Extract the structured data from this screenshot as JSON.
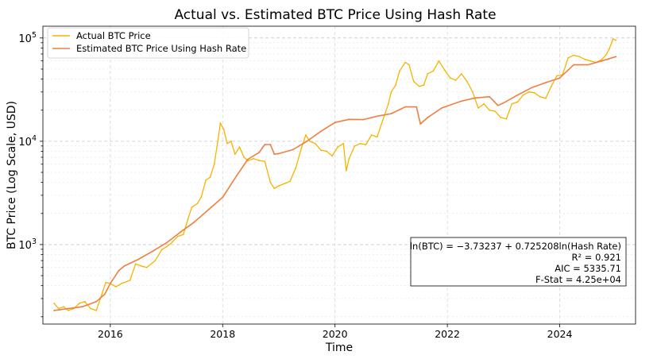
{
  "chart_data": {
    "type": "line",
    "title": "Actual vs. Estimated BTC Price Using Hash Rate",
    "xlabel": "Time",
    "ylabel": "BTC Price (Log Scale, USD)",
    "y_scale": "log",
    "xlim": [
      2014.8,
      2025.35
    ],
    "ylim": [
      170,
      130000
    ],
    "x_ticks": [
      2016,
      2018,
      2020,
      2022,
      2024
    ],
    "x_tick_labels": [
      "2016",
      "2018",
      "2020",
      "2022",
      "2024"
    ],
    "y_ticks": [
      1000,
      10000,
      100000
    ],
    "y_tick_labels": [
      "10^3",
      "10^4",
      "10^5"
    ],
    "grid": true,
    "legend_position": "upper-left",
    "series": [
      {
        "name": "Actual BTC Price",
        "color": "#f5b400",
        "x": [
          2015.0,
          2015.08,
          2015.17,
          2015.25,
          2015.35,
          2015.45,
          2015.55,
          2015.65,
          2015.75,
          2015.85,
          2015.92,
          2016.0,
          2016.1,
          2016.2,
          2016.35,
          2016.45,
          2016.55,
          2016.65,
          2016.8,
          2016.92,
          2017.0,
          2017.1,
          2017.2,
          2017.3,
          2017.38,
          2017.45,
          2017.55,
          2017.62,
          2017.7,
          2017.78,
          2017.85,
          2017.92,
          2017.96,
          2018.02,
          2018.08,
          2018.15,
          2018.22,
          2018.3,
          2018.38,
          2018.45,
          2018.55,
          2018.65,
          2018.75,
          2018.85,
          2018.92,
          2019.0,
          2019.1,
          2019.2,
          2019.3,
          2019.4,
          2019.48,
          2019.55,
          2019.65,
          2019.75,
          2019.85,
          2019.95,
          2020.05,
          2020.15,
          2020.2,
          2020.25,
          2020.35,
          2020.45,
          2020.55,
          2020.65,
          2020.75,
          2020.85,
          2020.95,
          2021.0,
          2021.08,
          2021.15,
          2021.25,
          2021.32,
          2021.4,
          2021.5,
          2021.58,
          2021.65,
          2021.75,
          2021.85,
          2021.95,
          2022.05,
          2022.15,
          2022.25,
          2022.35,
          2022.45,
          2022.55,
          2022.65,
          2022.75,
          2022.85,
          2022.95,
          2023.05,
          2023.15,
          2023.25,
          2023.35,
          2023.45,
          2023.55,
          2023.65,
          2023.75,
          2023.85,
          2023.95,
          2024.05,
          2024.15,
          2024.25,
          2024.35,
          2024.45,
          2024.55,
          2024.65,
          2024.75,
          2024.82,
          2024.88,
          2024.95,
          2025.0
        ],
        "values": [
          270,
          240,
          250,
          230,
          240,
          270,
          280,
          240,
          230,
          330,
          430,
          420,
          390,
          420,
          450,
          650,
          620,
          600,
          700,
          900,
          950,
          1050,
          1200,
          1250,
          1750,
          2300,
          2500,
          2900,
          4200,
          4500,
          6000,
          10500,
          15000,
          13000,
          9500,
          10000,
          7500,
          8800,
          7000,
          6500,
          6800,
          6500,
          6400,
          4000,
          3500,
          3700,
          3900,
          4100,
          5500,
          8500,
          11500,
          10000,
          9500,
          8200,
          8000,
          7200,
          8800,
          9500,
          5200,
          6800,
          9000,
          9500,
          9300,
          11500,
          11000,
          16000,
          23000,
          30000,
          35000,
          48000,
          58000,
          55000,
          38000,
          34000,
          35000,
          45000,
          48000,
          60000,
          49000,
          41000,
          39000,
          45000,
          38000,
          30000,
          21000,
          23000,
          20000,
          19500,
          17000,
          16500,
          23000,
          24000,
          28000,
          30000,
          29500,
          27000,
          26000,
          34000,
          43000,
          44000,
          64000,
          68000,
          66000,
          62000,
          60000,
          58000,
          62000,
          68000,
          78000,
          98000,
          95000
        ]
      },
      {
        "name": "Estimated BTC Price Using Hash Rate",
        "color": "#ef7f40",
        "x": [
          2015.0,
          2015.25,
          2015.5,
          2015.75,
          2015.9,
          2016.0,
          2016.15,
          2016.25,
          2016.5,
          2016.75,
          2017.0,
          2017.25,
          2017.5,
          2017.75,
          2018.0,
          2018.25,
          2018.45,
          2018.65,
          2018.75,
          2018.85,
          2018.92,
          2019.0,
          2019.25,
          2019.5,
          2019.75,
          2020.0,
          2020.25,
          2020.5,
          2020.75,
          2021.0,
          2021.25,
          2021.45,
          2021.52,
          2021.65,
          2021.9,
          2022.25,
          2022.5,
          2022.75,
          2022.9,
          2023.0,
          2023.25,
          2023.5,
          2023.75,
          2024.0,
          2024.25,
          2024.5,
          2024.75,
          2025.0
        ],
        "values": [
          230,
          240,
          250,
          280,
          330,
          420,
          560,
          620,
          720,
          860,
          1040,
          1320,
          1660,
          2180,
          2870,
          4650,
          6700,
          7800,
          9300,
          9300,
          7500,
          7600,
          8300,
          10000,
          12500,
          15200,
          16300,
          16200,
          17500,
          18500,
          21500,
          21500,
          14700,
          17000,
          21000,
          24500,
          26300,
          27000,
          22200,
          23500,
          28000,
          33000,
          37000,
          41000,
          55000,
          55000,
          60000,
          66000
        ]
      }
    ],
    "annotation": {
      "lines": [
        "ln(BTC) = −3.73237 + 0.725208ln(Hash Rate)",
        "R² = 0.921",
        "AIC = 5335.71",
        "F-Stat = 4.25e+04"
      ]
    }
  }
}
